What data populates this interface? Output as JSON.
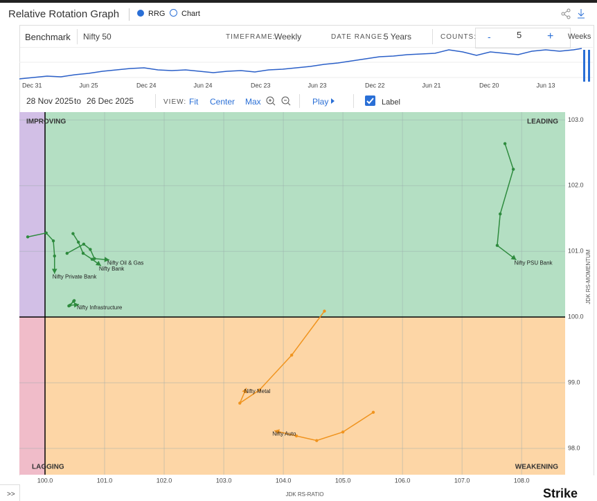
{
  "header": {
    "title": "Relative Rotation Graph",
    "tab_rrg": "RRG",
    "tab_chart": "Chart"
  },
  "toolbar": {
    "benchmark_label": "Benchmark",
    "benchmark": "Nifty 50",
    "timeframe_label": "TIMEFRAME:",
    "timeframe": "Weekly",
    "date_range_label": "DATE RANGE:",
    "date_range": "5 Years",
    "counts_label": "COUNTS:",
    "minus": "-",
    "counts": "5",
    "plus": "+",
    "counts_unit": "Weeks"
  },
  "timeline": {
    "labels": [
      "Dec 31",
      "Jun 25",
      "Dec 24",
      "Jun 24",
      "Dec 23",
      "Jun 23",
      "Dec 22",
      "Jun 21",
      "Dec 20",
      "Jun 13"
    ]
  },
  "controls": {
    "from": "28 Nov 2025",
    "to_word": "to",
    "to": "26 Dec 2025",
    "view_label": "VIEW:",
    "fit": "Fit",
    "center": "Center",
    "max": "Max",
    "play": "Play",
    "label": "Label"
  },
  "footer": {
    "expand": ">>",
    "brand": "Strike"
  },
  "chart_data": {
    "type": "scatter",
    "x_label": "JDK RS-RATIO",
    "y_label": "JDK RS-MOMENTUM",
    "quadrants": {
      "top_left": "IMPROVING",
      "top_right": "LEADING",
      "bottom_left": "LAGGING",
      "bottom_right": "WEAKENING"
    },
    "center": [
      100,
      100
    ],
    "xlim": [
      99.57,
      108.73
    ],
    "ylim": [
      97.6,
      103.12
    ],
    "xticks": [
      {
        "value": 100,
        "label": "100.0"
      },
      {
        "value": 101,
        "label": "101.0"
      },
      {
        "value": 102,
        "label": "102.0"
      },
      {
        "value": 103,
        "label": "103.0"
      },
      {
        "value": 104,
        "label": "104.0"
      },
      {
        "value": 105,
        "label": "105.0"
      },
      {
        "value": 106,
        "label": "106.0"
      },
      {
        "value": 107,
        "label": "107.0"
      },
      {
        "value": 108,
        "label": "108.0"
      }
    ],
    "yticks": [
      {
        "value": 98,
        "label": "98.0"
      },
      {
        "value": 99,
        "label": "99.0"
      },
      {
        "value": 100,
        "label": "100.0"
      },
      {
        "value": 101,
        "label": "101.0"
      },
      {
        "value": 102,
        "label": "102.0"
      },
      {
        "value": 103,
        "label": "103.0"
      }
    ],
    "grid": true,
    "series": [
      {
        "name": "Nifty PSU Bank",
        "color": "#2e8b3e",
        "x": [
          107.72,
          107.86,
          107.64,
          107.59,
          107.91
        ],
        "values": [
          102.64,
          102.25,
          101.57,
          101.09,
          100.87
        ]
      },
      {
        "name": "Nifty Private Bank",
        "color": "#2e8b3e",
        "x": [
          99.71,
          100.02,
          100.14,
          100.16,
          100.16
        ],
        "values": [
          101.22,
          101.28,
          101.16,
          100.93,
          100.66
        ]
      },
      {
        "name": "Nifty Oil & Gas",
        "color": "#2e8b3e",
        "x": [
          100.37,
          100.65,
          100.76,
          100.83,
          101.08
        ],
        "values": [
          100.97,
          101.11,
          101.03,
          100.89,
          100.87
        ]
      },
      {
        "name": "Nifty Bank",
        "color": "#2e8b3e",
        "x": [
          100.47,
          100.56,
          100.64,
          100.79,
          100.94
        ],
        "values": [
          101.27,
          101.14,
          100.97,
          100.88,
          100.78
        ]
      },
      {
        "name": "Nifty Infrastructure",
        "color": "#2e8b3e",
        "x": [
          100.4,
          100.48,
          100.49,
          100.42,
          100.57
        ],
        "values": [
          100.17,
          100.24,
          100.25,
          100.18,
          100.19
        ]
      },
      {
        "name": "Nifty Metal",
        "color": "#f0941f",
        "x": [
          104.69,
          104.14,
          103.6,
          103.27,
          103.38
        ],
        "values": [
          100.09,
          99.42,
          98.89,
          98.69,
          98.92
        ]
      },
      {
        "name": "Nifty Auto",
        "color": "#f0941f",
        "x": [
          105.51,
          105.0,
          104.56,
          104.22,
          103.85
        ],
        "values": [
          98.55,
          98.25,
          98.12,
          98.19,
          98.27
        ]
      }
    ]
  }
}
